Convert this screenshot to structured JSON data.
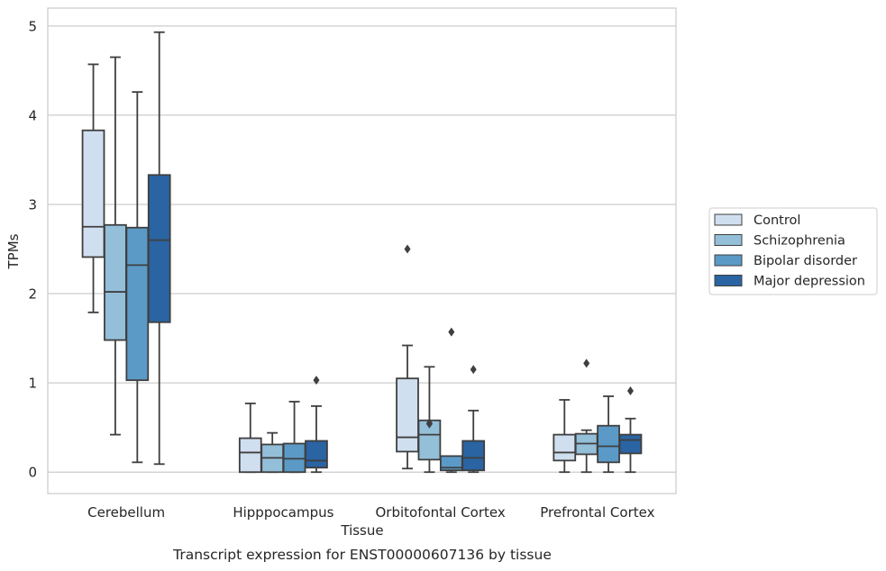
{
  "chart_data": {
    "type": "boxplot",
    "caption": "Transcript expression for ENST00000607136 by tissue",
    "xlabel": "Tissue",
    "ylabel": "TPMs",
    "ylim": [
      -0.24,
      5.2
    ],
    "yticks": [
      "0",
      "1",
      "2",
      "3",
      "4",
      "5"
    ],
    "grid": "horizontal",
    "legend_position": "right",
    "categories": [
      "Cerebellum",
      "Hipppocampus",
      "Orbitofontal Cortex",
      "Prefrontal Cortex"
    ],
    "series": [
      {
        "name": "Control",
        "color": "#d0dff0",
        "boxes": [
          {
            "whislo": 1.79,
            "q1": 2.41,
            "med": 2.75,
            "q3": 3.83,
            "whishi": 4.57,
            "fliers": []
          },
          {
            "whislo": 0.0,
            "q1": 0.0,
            "med": 0.22,
            "q3": 0.38,
            "whishi": 0.77,
            "fliers": []
          },
          {
            "whislo": 0.04,
            "q1": 0.23,
            "med": 0.39,
            "q3": 1.05,
            "whishi": 1.42,
            "fliers": [
              2.5
            ]
          },
          {
            "whislo": 0.0,
            "q1": 0.13,
            "med": 0.22,
            "q3": 0.42,
            "whishi": 0.81,
            "fliers": []
          }
        ]
      },
      {
        "name": "Schizophrenia",
        "color": "#94bfd9",
        "boxes": [
          {
            "whislo": 0.42,
            "q1": 1.48,
            "med": 2.02,
            "q3": 2.77,
            "whishi": 4.65,
            "fliers": []
          },
          {
            "whislo": 0.0,
            "q1": 0.0,
            "med": 0.16,
            "q3": 0.31,
            "whishi": 0.44,
            "fliers": []
          },
          {
            "whislo": 0.0,
            "q1": 0.14,
            "med": 0.42,
            "q3": 0.58,
            "whishi": 1.18,
            "fliers": [
              0.55,
              0.54
            ]
          },
          {
            "whislo": 0.0,
            "q1": 0.2,
            "med": 0.32,
            "q3": 0.43,
            "whishi": 0.47,
            "fliers": [
              1.22
            ]
          }
        ]
      },
      {
        "name": "Bipolar disorder",
        "color": "#5b9ac7",
        "boxes": [
          {
            "whislo": 0.11,
            "q1": 1.03,
            "med": 2.32,
            "q3": 2.74,
            "whishi": 4.26,
            "fliers": []
          },
          {
            "whislo": 0.0,
            "q1": 0.0,
            "med": 0.15,
            "q3": 0.32,
            "whishi": 0.79,
            "fliers": []
          },
          {
            "whislo": 0.0,
            "q1": 0.02,
            "med": 0.05,
            "q3": 0.18,
            "whishi": 0.18,
            "fliers": [
              1.57
            ]
          },
          {
            "whislo": 0.0,
            "q1": 0.11,
            "med": 0.29,
            "q3": 0.52,
            "whishi": 0.85,
            "fliers": []
          }
        ]
      },
      {
        "name": "Major depression",
        "color": "#2a64a2",
        "boxes": [
          {
            "whislo": 0.09,
            "q1": 1.68,
            "med": 2.6,
            "q3": 3.33,
            "whishi": 4.93,
            "fliers": []
          },
          {
            "whislo": 0.0,
            "q1": 0.05,
            "med": 0.13,
            "q3": 0.35,
            "whishi": 0.74,
            "fliers": [
              1.03
            ]
          },
          {
            "whislo": 0.0,
            "q1": 0.02,
            "med": 0.16,
            "q3": 0.35,
            "whishi": 0.69,
            "fliers": [
              1.15
            ]
          },
          {
            "whislo": 0.0,
            "q1": 0.21,
            "med": 0.36,
            "q3": 0.42,
            "whishi": 0.6,
            "fliers": [
              0.91
            ]
          }
        ]
      }
    ]
  }
}
